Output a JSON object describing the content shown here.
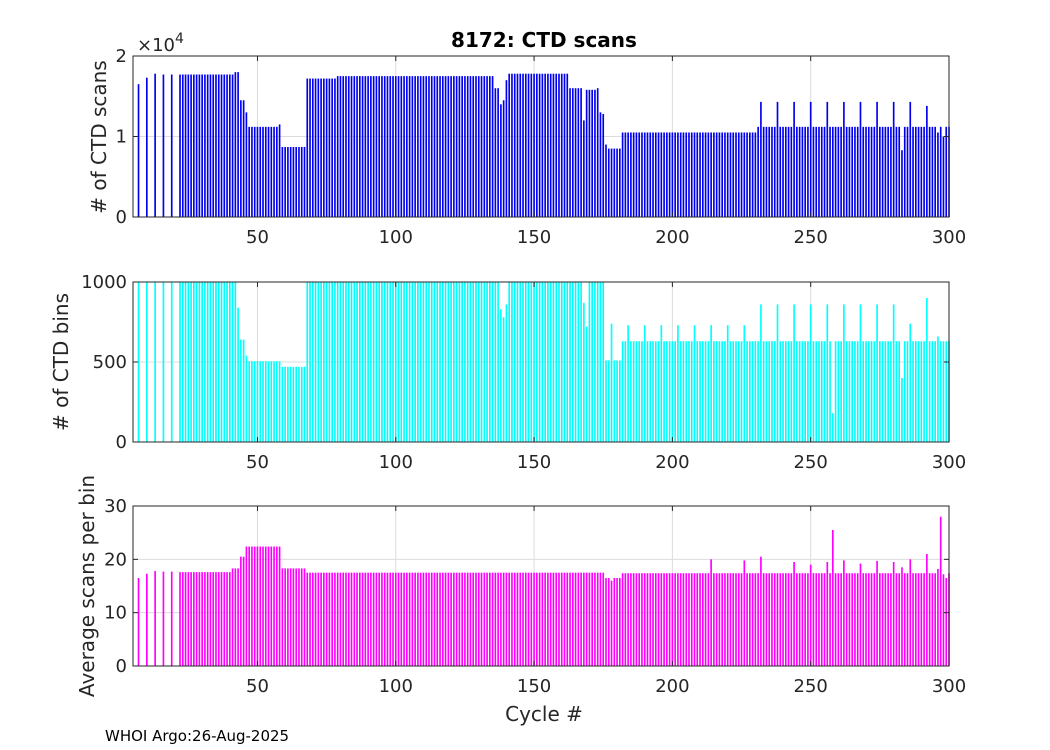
{
  "footer": "WHOI Argo:26-Aug-2025",
  "colors": {
    "scans": "#0000ee",
    "bins": "#00ffff",
    "avg": "#ff00ff",
    "axis": "#262626",
    "grid": "#dcdcdc"
  },
  "chart_data": [
    {
      "type": "bar",
      "title": "8172: CTD scans",
      "ylabel": "# of CTD scans",
      "xlabel": "",
      "y_exponent_label": "×10",
      "y_exponent_power": "4",
      "xlim": [
        5,
        300
      ],
      "ylim": [
        0,
        2
      ],
      "x_ticks": [
        50,
        100,
        150,
        200,
        250,
        300
      ],
      "x_tick_labels": [
        "50",
        "100",
        "150",
        "200",
        "250",
        "300"
      ],
      "y_ticks": [
        0,
        1,
        2
      ],
      "y_tick_labels": [
        "0",
        "1",
        "2"
      ],
      "segments": [
        {
          "from": 7,
          "to": 7,
          "value": 1.65
        },
        {
          "from": 10,
          "to": 10,
          "value": 1.73
        },
        {
          "from": 13,
          "to": 13,
          "value": 1.78
        },
        {
          "from": 16,
          "to": 16,
          "value": 1.77
        },
        {
          "from": 19,
          "to": 19,
          "value": 1.77
        },
        {
          "from": 22,
          "to": 41,
          "value": 1.77
        },
        {
          "from": 42,
          "to": 43,
          "value": 1.8
        },
        {
          "from": 44,
          "to": 45,
          "value": 1.45
        },
        {
          "from": 46,
          "to": 46,
          "value": 1.3
        },
        {
          "from": 47,
          "to": 57,
          "value": 1.12
        },
        {
          "from": 58,
          "to": 58,
          "value": 1.15
        },
        {
          "from": 59,
          "to": 67,
          "value": 0.87
        },
        {
          "from": 68,
          "to": 78,
          "value": 1.72
        },
        {
          "from": 79,
          "to": 135,
          "value": 1.75
        },
        {
          "from": 136,
          "to": 137,
          "value": 1.6
        },
        {
          "from": 138,
          "to": 138,
          "value": 1.4
        },
        {
          "from": 139,
          "to": 139,
          "value": 1.45
        },
        {
          "from": 140,
          "to": 140,
          "value": 1.7
        },
        {
          "from": 141,
          "to": 162,
          "value": 1.78
        },
        {
          "from": 163,
          "to": 167,
          "value": 1.6
        },
        {
          "from": 168,
          "to": 168,
          "value": 1.2
        },
        {
          "from": 169,
          "to": 172,
          "value": 1.58
        },
        {
          "from": 173,
          "to": 173,
          "value": 1.6
        },
        {
          "from": 174,
          "to": 174,
          "value": 1.3
        },
        {
          "from": 175,
          "to": 175,
          "value": 1.28
        },
        {
          "from": 176,
          "to": 176,
          "value": 0.9
        },
        {
          "from": 177,
          "to": 181,
          "value": 0.85
        },
        {
          "from": 182,
          "to": 230,
          "value": 1.05
        },
        {
          "from": 231,
          "to": 300,
          "value": 1.12
        }
      ],
      "overrides": {
        "232": 1.43,
        "238": 1.43,
        "244": 1.43,
        "250": 1.43,
        "256": 1.43,
        "262": 1.43,
        "268": 1.43,
        "274": 1.43,
        "280": 1.43,
        "286": 1.43,
        "292": 1.38,
        "283": 0.83,
        "296": 1.05,
        "298": 1.0
      }
    },
    {
      "type": "bar",
      "title": "",
      "ylabel": "# of CTD bins",
      "xlabel": "",
      "xlim": [
        5,
        300
      ],
      "ylim": [
        0,
        1000
      ],
      "x_ticks": [
        50,
        100,
        150,
        200,
        250,
        300
      ],
      "x_tick_labels": [
        "50",
        "100",
        "150",
        "200",
        "250",
        "300"
      ],
      "y_ticks": [
        0,
        500,
        1000
      ],
      "y_tick_labels": [
        "0",
        "500",
        "1000"
      ],
      "segments": [
        {
          "from": 7,
          "to": 7,
          "value": 1000
        },
        {
          "from": 10,
          "to": 10,
          "value": 1000
        },
        {
          "from": 13,
          "to": 13,
          "value": 1000
        },
        {
          "from": 16,
          "to": 16,
          "value": 1000
        },
        {
          "from": 19,
          "to": 19,
          "value": 1000
        },
        {
          "from": 22,
          "to": 42,
          "value": 1000
        },
        {
          "from": 43,
          "to": 43,
          "value": 840
        },
        {
          "from": 44,
          "to": 45,
          "value": 640
        },
        {
          "from": 46,
          "to": 46,
          "value": 540
        },
        {
          "from": 47,
          "to": 58,
          "value": 505
        },
        {
          "from": 59,
          "to": 67,
          "value": 470
        },
        {
          "from": 68,
          "to": 137,
          "value": 1000
        },
        {
          "from": 138,
          "to": 138,
          "value": 830
        },
        {
          "from": 139,
          "to": 139,
          "value": 780
        },
        {
          "from": 140,
          "to": 140,
          "value": 860
        },
        {
          "from": 141,
          "to": 167,
          "value": 1000
        },
        {
          "from": 168,
          "to": 168,
          "value": 870
        },
        {
          "from": 169,
          "to": 169,
          "value": 720
        },
        {
          "from": 170,
          "to": 175,
          "value": 1000
        },
        {
          "from": 176,
          "to": 181,
          "value": 510
        },
        {
          "from": 182,
          "to": 300,
          "value": 630
        }
      ],
      "overrides": {
        "178": 740,
        "184": 730,
        "190": 730,
        "196": 730,
        "202": 730,
        "208": 730,
        "214": 730,
        "220": 730,
        "226": 730,
        "232": 860,
        "238": 860,
        "244": 860,
        "250": 860,
        "256": 860,
        "262": 860,
        "268": 860,
        "274": 860,
        "280": 860,
        "286": 740,
        "292": 900,
        "258": 180,
        "283": 400,
        "296": 660
      }
    },
    {
      "type": "bar",
      "title": "",
      "ylabel": "Average scans per bin",
      "xlabel": "Cycle #",
      "xlim": [
        5,
        300
      ],
      "ylim": [
        0,
        30
      ],
      "x_ticks": [
        50,
        100,
        150,
        200,
        250,
        300
      ],
      "x_tick_labels": [
        "50",
        "100",
        "150",
        "200",
        "250",
        "300"
      ],
      "y_ticks": [
        0,
        10,
        20,
        30
      ],
      "y_tick_labels": [
        "0",
        "10",
        "20",
        "30"
      ],
      "segments": [
        {
          "from": 7,
          "to": 7,
          "value": 16.5
        },
        {
          "from": 10,
          "to": 10,
          "value": 17.3
        },
        {
          "from": 13,
          "to": 13,
          "value": 17.8
        },
        {
          "from": 16,
          "to": 16,
          "value": 17.7
        },
        {
          "from": 19,
          "to": 19,
          "value": 17.7
        },
        {
          "from": 22,
          "to": 40,
          "value": 17.6
        },
        {
          "from": 41,
          "to": 43,
          "value": 18.3
        },
        {
          "from": 44,
          "to": 45,
          "value": 20.5
        },
        {
          "from": 46,
          "to": 58,
          "value": 22.4
        },
        {
          "from": 59,
          "to": 67,
          "value": 18.3
        },
        {
          "from": 68,
          "to": 175,
          "value": 17.5
        },
        {
          "from": 176,
          "to": 181,
          "value": 16.5
        },
        {
          "from": 182,
          "to": 300,
          "value": 17.4
        }
      ],
      "overrides": {
        "178": 16.0,
        "214": 20.0,
        "226": 19.8,
        "232": 20.5,
        "244": 19.5,
        "250": 19.0,
        "256": 19.5,
        "258": 25.5,
        "262": 19.8,
        "268": 19.2,
        "274": 19.7,
        "280": 19.5,
        "286": 20.0,
        "292": 21.0,
        "283": 18.5,
        "296": 18.2,
        "297": 28.0,
        "298": 17.2,
        "299": 16.5
      }
    }
  ]
}
